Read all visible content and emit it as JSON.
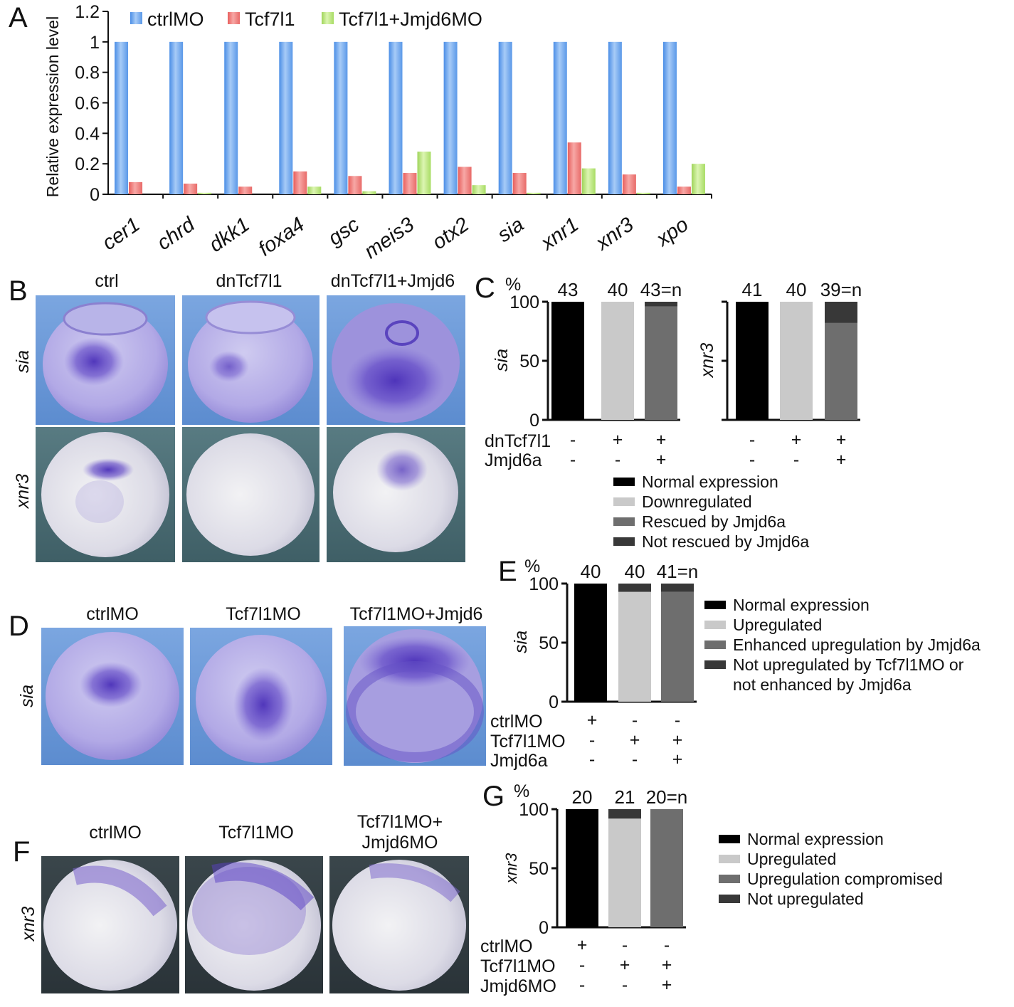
{
  "panel_letters": [
    "A",
    "B",
    "C",
    "D",
    "E",
    "F",
    "G"
  ],
  "colors": {
    "ctrlMO": "#6aaaf0",
    "Tcf7l1": "#f07a78",
    "Tcf7l1+Jmjd6MO": "#bde87f",
    "normal": "#000000",
    "down": "#c9c9c9",
    "rescued": "#6e6e6e",
    "notrescued": "#383838",
    "embryo_blue_bg": "#6e9bd8",
    "embryo_dark_bg": "#4d6d73",
    "stain": "#5a3fc4"
  },
  "panelA": {
    "chart_data": {
      "type": "bar",
      "ylabel": "Relative expression level",
      "ylim": [
        0,
        1.2
      ],
      "yticks": [
        "0",
        "0.2",
        "0.4",
        "0.6",
        "0.8",
        "1",
        "1.2"
      ],
      "categories": [
        "cer1",
        "chrd",
        "dkk1",
        "foxa4",
        "gsc",
        "meis3",
        "otx2",
        "sia",
        "xnr1",
        "xnr3",
        "xpo"
      ],
      "series": [
        {
          "name": "ctrlMO",
          "values": [
            1,
            1,
            1,
            1,
            1,
            1,
            1,
            1,
            1,
            1,
            1
          ]
        },
        {
          "name": "Tcf7l1",
          "values": [
            0.08,
            0.07,
            0.05,
            0.15,
            0.12,
            0.14,
            0.18,
            0.14,
            0.34,
            0.13,
            0.05
          ]
        },
        {
          "name": "Tcf7l1+Jmjd6MO",
          "values": [
            0,
            0.01,
            0,
            0.05,
            0.02,
            0.28,
            0.06,
            0.01,
            0.17,
            0.01,
            0.2
          ]
        }
      ]
    }
  },
  "panelB": {
    "columns": [
      "ctrl",
      "dnTcf7l1",
      "dnTcf7l1+Jmjd6"
    ],
    "rows": [
      "sia",
      "xnr3"
    ]
  },
  "panelC": {
    "percent_label": "%",
    "yticks": [
      "0",
      "50",
      "100"
    ],
    "row_labels": [
      "dnTcf7l1",
      "Jmjd6a"
    ],
    "signs": [
      [
        "-",
        "+",
        "+"
      ],
      [
        "-",
        "-",
        "+"
      ]
    ],
    "legend": [
      "Normal expression",
      "Downregulated",
      "Rescued by Jmjd6a",
      "Not rescued by Jmjd6a"
    ],
    "chart_data": [
      {
        "type": "bar",
        "stacked": true,
        "ylabel": "sia",
        "ylim": [
          0,
          100
        ],
        "n_labels": [
          "43",
          "40",
          "43=n"
        ],
        "series": [
          {
            "name": "Normal expression",
            "values": [
              100,
              0,
              0
            ]
          },
          {
            "name": "Downregulated",
            "values": [
              0,
              100,
              0
            ]
          },
          {
            "name": "Rescued by Jmjd6a",
            "values": [
              0,
              0,
              96
            ]
          },
          {
            "name": "Not rescued by Jmjd6a",
            "values": [
              0,
              0,
              4
            ]
          }
        ]
      },
      {
        "type": "bar",
        "stacked": true,
        "ylabel": "xnr3",
        "ylim": [
          0,
          100
        ],
        "n_labels": [
          "41",
          "40",
          "39=n"
        ],
        "series": [
          {
            "name": "Normal expression",
            "values": [
              100,
              0,
              0
            ]
          },
          {
            "name": "Downregulated",
            "values": [
              0,
              100,
              0
            ]
          },
          {
            "name": "Rescued by Jmjd6a",
            "values": [
              0,
              0,
              82
            ]
          },
          {
            "name": "Not rescued by Jmjd6a",
            "values": [
              0,
              0,
              18
            ]
          }
        ]
      }
    ]
  },
  "panelD": {
    "columns": [
      "ctrlMO",
      "Tcf7l1MO",
      "Tcf7l1MO+Jmjd6"
    ],
    "rows": [
      "sia"
    ]
  },
  "panelE": {
    "percent_label": "%",
    "yticks": [
      "0",
      "50",
      "100"
    ],
    "row_labels": [
      "ctrlMO",
      "Tcf7l1MO",
      "Jmjd6a"
    ],
    "signs": [
      [
        "+",
        "-",
        "-"
      ],
      [
        "-",
        "+",
        "+"
      ],
      [
        "-",
        "-",
        "+"
      ]
    ],
    "legend": [
      "Normal expression",
      "Upregulated",
      "Enhanced upregulation by Jmjd6a",
      "Not upregulated by Tcf7l1MO or",
      "not enhanced by Jmjd6a"
    ],
    "chart_data": {
      "type": "bar",
      "stacked": true,
      "ylabel": "sia",
      "ylim": [
        0,
        100
      ],
      "n_labels": [
        "40",
        "40",
        "41=n"
      ],
      "series": [
        {
          "name": "Normal expression",
          "values": [
            100,
            0,
            0
          ]
        },
        {
          "name": "Upregulated",
          "values": [
            0,
            93,
            0
          ]
        },
        {
          "name": "Enhanced upregulation by Jmjd6a",
          "values": [
            0,
            0,
            93
          ]
        },
        {
          "name": "Not upregulated by Tcf7l1MO or not enhanced by Jmjd6a",
          "values": [
            0,
            7,
            7
          ]
        }
      ]
    }
  },
  "panelF": {
    "columns": [
      "ctrlMO",
      "Tcf7l1MO",
      "Tcf7l1MO+",
      "Jmjd6MO"
    ],
    "rows": [
      "xnr3"
    ]
  },
  "panelG": {
    "percent_label": "%",
    "yticks": [
      "0",
      "50",
      "100"
    ],
    "row_labels": [
      "ctrlMO",
      "Tcf7l1MO",
      "Jmjd6MO"
    ],
    "signs": [
      [
        "+",
        "-",
        "-"
      ],
      [
        "-",
        "+",
        "+"
      ],
      [
        "-",
        "-",
        "+"
      ]
    ],
    "legend": [
      "Normal expression",
      "Upregulated",
      "Upregulation compromised",
      "Not upregulated"
    ],
    "chart_data": {
      "type": "bar",
      "stacked": true,
      "ylabel": "xnr3",
      "ylim": [
        0,
        100
      ],
      "n_labels": [
        "20",
        "21",
        "20=n"
      ],
      "series": [
        {
          "name": "Normal expression",
          "values": [
            100,
            0,
            0
          ]
        },
        {
          "name": "Upregulated",
          "values": [
            0,
            92,
            0
          ]
        },
        {
          "name": "Upregulation compromised",
          "values": [
            0,
            0,
            100
          ]
        },
        {
          "name": "Not upregulated",
          "values": [
            0,
            8,
            0
          ]
        }
      ]
    }
  }
}
